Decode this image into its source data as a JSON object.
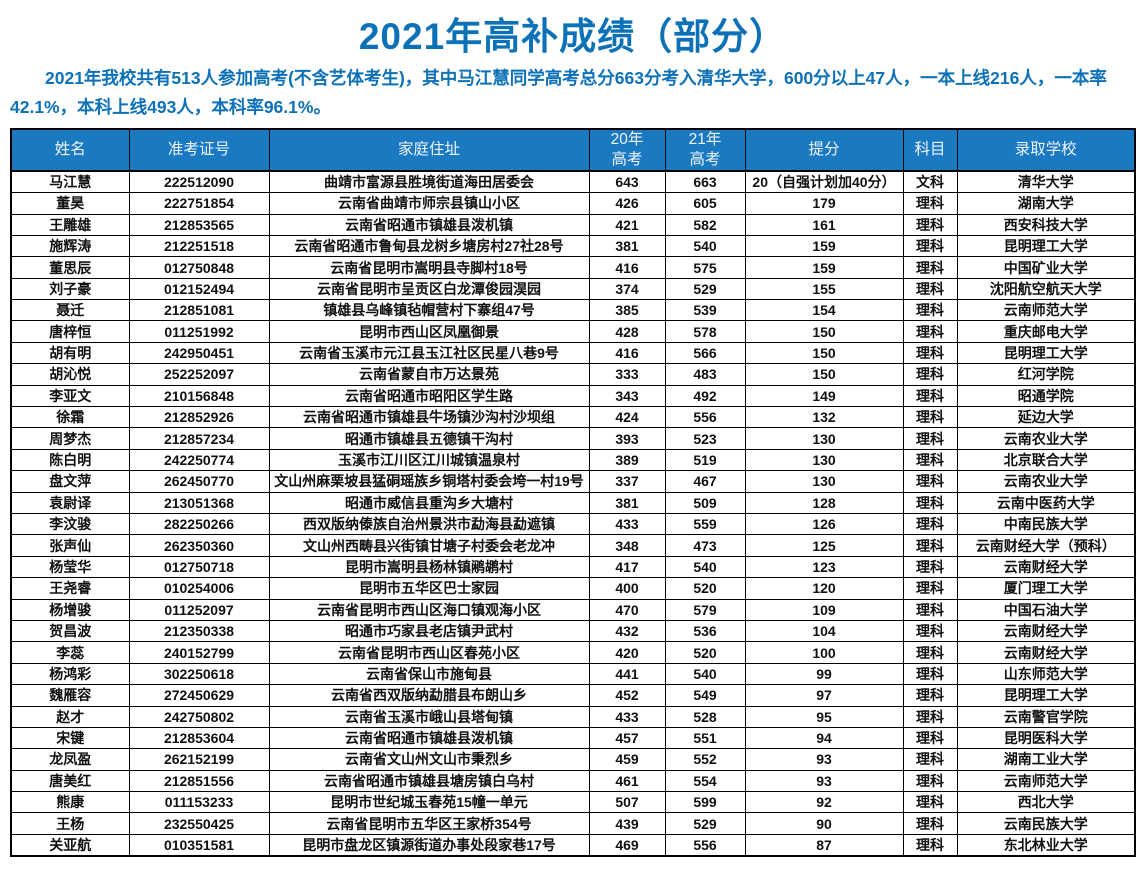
{
  "title": "2021年高补成绩（部分）",
  "intro": "2021年我校共有513人参加高考(不含艺体考生)，其中马江慧同学高考总分663分考入清华大学，600分以上47人，一本上线216人，一本率42.1%，本科上线493人，本科率96.1%。",
  "colors": {
    "title_blue": "#0d71b8",
    "header_blue": "#1b79c2",
    "header_text": "#eef5fc",
    "border_black": "#000000"
  },
  "table": {
    "columns": [
      "姓名",
      "准考证号",
      "家庭住址",
      "20年\n高考",
      "21年\n高考",
      "提分",
      "科目",
      "录取学校"
    ],
    "rows": [
      [
        "马江慧",
        "222512090",
        "曲靖市富源县胜境街道海田居委会",
        "643",
        "663",
        "20（自强计划加40分）",
        "文科",
        "清华大学"
      ],
      [
        "董昊",
        "222751854",
        "云南省曲靖市师宗县镇山小区",
        "426",
        "605",
        "179",
        "理科",
        "湖南大学"
      ],
      [
        "王雕雄",
        "212853565",
        "云南省昭通市镇雄县泼机镇",
        "421",
        "582",
        "161",
        "理科",
        "西安科技大学"
      ],
      [
        "施辉涛",
        "212251518",
        "云南省昭通市鲁甸县龙树乡塘房村27社28号",
        "381",
        "540",
        "159",
        "理科",
        "昆明理工大学"
      ],
      [
        "董思辰",
        "012750848",
        "云南省昆明市嵩明县寺脚村18号",
        "416",
        "575",
        "159",
        "理科",
        "中国矿业大学"
      ],
      [
        "刘子豪",
        "012152494",
        "云南省昆明市呈贡区白龙潭俊园淏园",
        "374",
        "529",
        "155",
        "理科",
        "沈阳航空航天大学"
      ],
      [
        "聂迁",
        "212851081",
        "镇雄县乌峰镇毡帽营村下寨组47号",
        "385",
        "539",
        "154",
        "理科",
        "云南师范大学"
      ],
      [
        "唐梓恒",
        "011251992",
        "昆明市西山区凤凰御景",
        "428",
        "578",
        "150",
        "理科",
        "重庆邮电大学"
      ],
      [
        "胡有明",
        "242950451",
        "云南省玉溪市元江县玉江社区民星八巷9号",
        "416",
        "566",
        "150",
        "理科",
        "昆明理工大学"
      ],
      [
        "胡沁悦",
        "252252097",
        "云南省蒙自市万达景苑",
        "333",
        "483",
        "150",
        "理科",
        "红河学院"
      ],
      [
        "李亚文",
        "210156848",
        "云南省昭通市昭阳区学生路",
        "343",
        "492",
        "149",
        "理科",
        "昭通学院"
      ],
      [
        "徐霜",
        "212852926",
        "云南省昭通市镇雄县牛场镇沙沟村沙坝组",
        "424",
        "556",
        "132",
        "理科",
        "延边大学"
      ],
      [
        "周梦杰",
        "212857234",
        "昭通市镇雄县五德镇干沟村",
        "393",
        "523",
        "130",
        "理科",
        "云南农业大学"
      ],
      [
        "陈白明",
        "242250774",
        "玉溪市江川区江川城镇温泉村",
        "389",
        "519",
        "130",
        "理科",
        "北京联合大学"
      ],
      [
        "盘文萍",
        "262450770",
        "文山州麻栗坡县猛硐瑶族乡铜塔村委会垮一村19号",
        "337",
        "467",
        "130",
        "理科",
        "云南农业大学"
      ],
      [
        "袁尉译",
        "213051368",
        "昭通市威信县重沟乡大塘村",
        "381",
        "509",
        "128",
        "理科",
        "云南中医药大学"
      ],
      [
        "李汶骏",
        "282250266",
        "西双版纳傣族自治州景洪市勐海县勐遮镇",
        "433",
        "559",
        "126",
        "理科",
        "中南民族大学"
      ],
      [
        "张声仙",
        "262350360",
        "文山州西畴县兴街镇甘塘子村委会老龙冲",
        "348",
        "473",
        "125",
        "理科",
        "云南财经大学（预科）"
      ],
      [
        "杨莹华",
        "012750718",
        "昆明市嵩明县杨林镇鹇鹕村",
        "417",
        "540",
        "123",
        "理科",
        "云南财经大学"
      ],
      [
        "王尧睿",
        "010254006",
        "昆明市五华区巴士家园",
        "400",
        "520",
        "120",
        "理科",
        "厦门理工大学"
      ],
      [
        "杨增骏",
        "011252097",
        "云南省昆明市西山区海口镇观海小区",
        "470",
        "579",
        "109",
        "理科",
        "中国石油大学"
      ],
      [
        "贺昌波",
        "212350338",
        "昭通市巧家县老店镇尹武村",
        "432",
        "536",
        "104",
        "理科",
        "云南财经大学"
      ],
      [
        "李蕊",
        "240152799",
        "云南省昆明市西山区春苑小区",
        "420",
        "520",
        "100",
        "理科",
        "云南财经大学"
      ],
      [
        "杨鸿彩",
        "302250618",
        "云南省保山市施甸县",
        "441",
        "540",
        "99",
        "理科",
        "山东师范大学"
      ],
      [
        "魏雁容",
        "272450629",
        "云南省西双版纳勐腊县布朗山乡",
        "452",
        "549",
        "97",
        "理科",
        "昆明理工大学"
      ],
      [
        "赵才",
        "242750802",
        "云南省玉溪市峨山县塔甸镇",
        "433",
        "528",
        "95",
        "理科",
        "云南警官学院"
      ],
      [
        "宋键",
        "212853604",
        "云南省昭通市镇雄县泼机镇",
        "457",
        "551",
        "94",
        "理科",
        "昆明医科大学"
      ],
      [
        "龙凤盈",
        "262152199",
        "云南省文山州文山市秉烈乡",
        "459",
        "552",
        "93",
        "理科",
        "湖南工业大学"
      ],
      [
        "唐美红",
        "212851556",
        "云南省昭通市镇雄县塘房镇白乌村",
        "461",
        "554",
        "93",
        "理科",
        "云南师范大学"
      ],
      [
        "熊康",
        "011153233",
        "昆明市世纪城玉春苑15幢一单元",
        "507",
        "599",
        "92",
        "理科",
        "西北大学"
      ],
      [
        "王杨",
        "232550425",
        "云南省昆明市五华区王家桥354号",
        "439",
        "529",
        "90",
        "理科",
        "云南民族大学"
      ],
      [
        "关亚航",
        "010351581",
        "昆明市盘龙区镇源街道办事处段家巷17号",
        "469",
        "556",
        "87",
        "理科",
        "东北林业大学"
      ]
    ]
  }
}
